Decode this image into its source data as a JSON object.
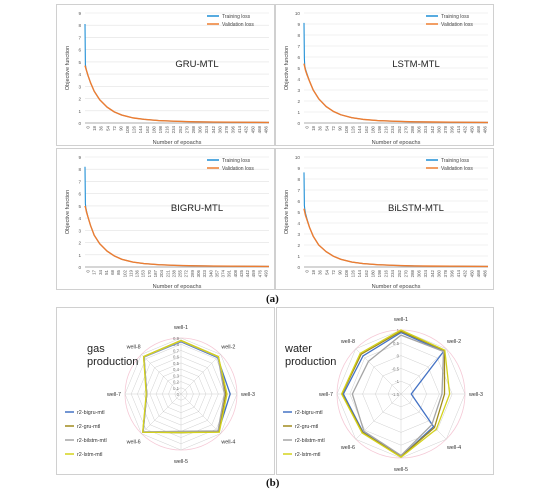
{
  "figure_labels": {
    "a": "(a)",
    "b": "(b)"
  },
  "colors": {
    "training": "#1f8fd6",
    "validation": "#ed7d31",
    "r2_bigru": "#4472c4",
    "r2_gru": "#a08a1e",
    "r2_bilstm": "#a5a5a5",
    "r2_lstm": "#d4d21c",
    "radar_grid": "#cfcfcf",
    "radar_band": "#f5c9d6"
  },
  "chart_data": [
    {
      "type": "line",
      "title": "GRU-MTL",
      "xlabel": "Number of epoachs",
      "ylabel": "Objective function",
      "ylim": [
        0,
        9
      ],
      "yticks": [
        "0",
        "1",
        "2",
        "3",
        "4",
        "5",
        "6",
        "7",
        "8",
        "9"
      ],
      "xticks": [
        "0",
        "18",
        "36",
        "54",
        "72",
        "90",
        "108",
        "126",
        "144",
        "162",
        "180",
        "198",
        "216",
        "234",
        "252",
        "270",
        "288",
        "306",
        "324",
        "342",
        "360",
        "378",
        "396",
        "414",
        "432",
        "450",
        "468",
        "486"
      ],
      "xlim": [
        0,
        500
      ],
      "legend": [
        "Training loss",
        "Validation loss"
      ],
      "series": [
        {
          "name": "Training loss",
          "x": [
            0,
            1,
            2,
            4,
            8,
            15,
            25,
            40,
            60,
            80,
            100,
            130,
            160,
            200,
            250,
            300,
            350,
            400,
            450,
            500
          ],
          "y": [
            8.1,
            4.8,
            4.6,
            4.3,
            3.9,
            3.3,
            2.6,
            1.9,
            1.3,
            0.9,
            0.65,
            0.42,
            0.3,
            0.2,
            0.14,
            0.1,
            0.08,
            0.07,
            0.06,
            0.05
          ]
        },
        {
          "name": "Validation loss",
          "x": [
            0,
            2,
            4,
            8,
            15,
            25,
            40,
            60,
            80,
            100,
            130,
            160,
            200,
            250,
            300,
            350,
            400,
            450,
            500
          ],
          "y": [
            4.7,
            4.5,
            4.3,
            3.9,
            3.3,
            2.6,
            1.9,
            1.3,
            0.9,
            0.65,
            0.42,
            0.3,
            0.2,
            0.14,
            0.1,
            0.08,
            0.07,
            0.06,
            0.05
          ]
        }
      ]
    },
    {
      "type": "line",
      "title": "LSTM-MTL",
      "xlabel": "Number of epoachs",
      "ylabel": "Objective function",
      "ylim": [
        0,
        10
      ],
      "yticks": [
        "0",
        "1",
        "2",
        "3",
        "4",
        "5",
        "6",
        "7",
        "8",
        "9",
        "10"
      ],
      "xticks": [
        "0",
        "18",
        "36",
        "54",
        "72",
        "90",
        "108",
        "126",
        "144",
        "162",
        "180",
        "198",
        "216",
        "234",
        "252",
        "270",
        "288",
        "306",
        "324",
        "342",
        "360",
        "378",
        "396",
        "414",
        "432",
        "450",
        "468",
        "486"
      ],
      "xlim": [
        0,
        500
      ],
      "legend": [
        "Training loss",
        "Validation loss"
      ],
      "series": [
        {
          "name": "Training loss",
          "x": [
            0,
            1,
            2,
            4,
            8,
            15,
            25,
            40,
            60,
            80,
            100,
            130,
            160,
            200,
            250,
            300,
            350,
            400,
            450,
            500
          ],
          "y": [
            9.1,
            5.9,
            5.2,
            4.9,
            4.5,
            3.8,
            3.0,
            2.2,
            1.5,
            1.05,
            0.75,
            0.48,
            0.33,
            0.22,
            0.15,
            0.11,
            0.09,
            0.07,
            0.06,
            0.05
          ]
        },
        {
          "name": "Validation loss",
          "x": [
            0,
            2,
            4,
            8,
            15,
            25,
            40,
            60,
            80,
            100,
            130,
            160,
            200,
            250,
            300,
            350,
            400,
            450,
            500
          ],
          "y": [
            5.4,
            5.1,
            4.8,
            4.4,
            3.8,
            3.0,
            2.2,
            1.5,
            1.05,
            0.75,
            0.48,
            0.33,
            0.22,
            0.15,
            0.11,
            0.09,
            0.07,
            0.06,
            0.05
          ]
        }
      ]
    },
    {
      "type": "line",
      "title": "BIGRU-MTL",
      "xlabel": "Number of epoachs",
      "ylabel": "Objective function",
      "ylim": [
        0,
        9
      ],
      "yticks": [
        "0",
        "1",
        "2",
        "3",
        "4",
        "5",
        "6",
        "7",
        "8",
        "9"
      ],
      "xticks": [
        "0",
        "17",
        "34",
        "51",
        "68",
        "85",
        "102",
        "119",
        "136",
        "153",
        "170",
        "187",
        "204",
        "221",
        "238",
        "255",
        "272",
        "289",
        "306",
        "323",
        "340",
        "357",
        "374",
        "391",
        "408",
        "425",
        "442",
        "459",
        "476",
        "493"
      ],
      "xlim": [
        0,
        500
      ],
      "legend": [
        "Training loss",
        "Validation loss"
      ],
      "series": [
        {
          "name": "Training loss",
          "x": [
            0,
            1,
            2,
            4,
            8,
            15,
            25,
            40,
            60,
            80,
            100,
            130,
            160,
            200,
            250,
            300,
            350,
            400,
            450,
            500
          ],
          "y": [
            8.2,
            5.2,
            4.9,
            4.6,
            4.1,
            3.4,
            2.6,
            1.9,
            1.3,
            0.9,
            0.63,
            0.4,
            0.28,
            0.19,
            0.13,
            0.1,
            0.08,
            0.07,
            0.06,
            0.05
          ]
        },
        {
          "name": "Validation loss",
          "x": [
            0,
            2,
            4,
            8,
            15,
            25,
            40,
            60,
            80,
            100,
            130,
            160,
            200,
            250,
            300,
            350,
            400,
            450,
            500
          ],
          "y": [
            5.0,
            4.8,
            4.5,
            4.1,
            3.4,
            2.6,
            1.9,
            1.3,
            0.9,
            0.63,
            0.4,
            0.28,
            0.19,
            0.13,
            0.1,
            0.08,
            0.07,
            0.06,
            0.05
          ]
        }
      ]
    },
    {
      "type": "line",
      "title": "BiLSTM-MTL",
      "xlabel": "Number of epoachs",
      "ylabel": "Objective function",
      "ylim": [
        0,
        10
      ],
      "yticks": [
        "0",
        "1",
        "2",
        "3",
        "4",
        "5",
        "6",
        "7",
        "8",
        "9",
        "10"
      ],
      "xticks": [
        "0",
        "18",
        "36",
        "54",
        "72",
        "90",
        "108",
        "126",
        "144",
        "162",
        "180",
        "198",
        "216",
        "234",
        "252",
        "270",
        "288",
        "306",
        "324",
        "342",
        "360",
        "378",
        "396",
        "414",
        "432",
        "450",
        "468",
        "486"
      ],
      "xlim": [
        0,
        500
      ],
      "legend": [
        "Training loss",
        "Validation loss"
      ],
      "series": [
        {
          "name": "Training loss",
          "x": [
            0,
            1,
            2,
            4,
            8,
            15,
            25,
            40,
            60,
            80,
            100,
            130,
            160,
            200,
            250,
            300,
            350,
            400,
            450,
            500
          ],
          "y": [
            8.6,
            5.6,
            5.3,
            4.9,
            4.4,
            3.6,
            2.8,
            2.0,
            1.4,
            0.98,
            0.7,
            0.45,
            0.31,
            0.21,
            0.14,
            0.1,
            0.08,
            0.07,
            0.06,
            0.05
          ]
        },
        {
          "name": "Validation loss",
          "x": [
            0,
            2,
            4,
            8,
            15,
            25,
            40,
            60,
            80,
            100,
            130,
            160,
            200,
            250,
            300,
            350,
            400,
            450,
            500
          ],
          "y": [
            5.3,
            5.0,
            4.7,
            4.3,
            3.6,
            2.8,
            2.0,
            1.4,
            0.98,
            0.7,
            0.45,
            0.31,
            0.21,
            0.14,
            0.1,
            0.08,
            0.07,
            0.06,
            0.05
          ]
        }
      ]
    },
    {
      "type": "radar",
      "title": "gas production",
      "title_lines": [
        "gas",
        "production"
      ],
      "categories": [
        "well-1",
        "well-2",
        "well-3",
        "well-4",
        "well-5",
        "well-6",
        "well-7",
        "well-8"
      ],
      "rlim": [
        0,
        0.9
      ],
      "rticks": [
        "0",
        "0.1",
        "0.2",
        "0.3",
        "0.4",
        "0.5",
        "0.6",
        "0.7",
        "0.8",
        "0.9"
      ],
      "series": [
        {
          "name": "r2-bigru-mtl",
          "values": [
            0.84,
            0.83,
            0.79,
            0.85,
            0.62,
            0.86,
            0.55,
            0.84
          ]
        },
        {
          "name": "r2-gru-mtl",
          "values": [
            0.86,
            0.85,
            0.72,
            0.86,
            0.62,
            0.87,
            0.55,
            0.85
          ]
        },
        {
          "name": "r2-bilstm-mtl",
          "values": [
            0.85,
            0.84,
            0.7,
            0.84,
            0.6,
            0.86,
            0.55,
            0.84
          ]
        },
        {
          "name": "r2-lstm-mtl",
          "values": [
            0.86,
            0.85,
            0.74,
            0.87,
            0.62,
            0.87,
            0.56,
            0.85
          ]
        }
      ]
    },
    {
      "type": "radar",
      "title": "water production",
      "title_lines": [
        "water",
        "production"
      ],
      "categories": [
        "well-1",
        "well-2",
        "well-3",
        "well-4",
        "well-5",
        "well-6",
        "well-7",
        "well-8"
      ],
      "rlim": [
        -1.5,
        1
      ],
      "rticks": [
        "-1.5",
        "-1",
        "-0.5",
        "0",
        "0.5",
        "1"
      ],
      "series": [
        {
          "name": "r2-bigru-mtl",
          "values": [
            0.9,
            0.85,
            -1.1,
            0.3,
            0.95,
            0.6,
            0.75,
            0.6
          ]
        },
        {
          "name": "r2-gru-mtl",
          "values": [
            0.95,
            0.9,
            0.2,
            0.35,
            0.95,
            0.62,
            0.8,
            0.7
          ]
        },
        {
          "name": "r2-bilstm-mtl",
          "values": [
            0.8,
            0.85,
            0.1,
            0.2,
            0.9,
            0.55,
            0.4,
            0.3
          ]
        },
        {
          "name": "r2-lstm-mtl",
          "values": [
            1.0,
            0.92,
            0.4,
            0.45,
            0.97,
            0.65,
            0.82,
            0.75
          ]
        }
      ]
    }
  ]
}
